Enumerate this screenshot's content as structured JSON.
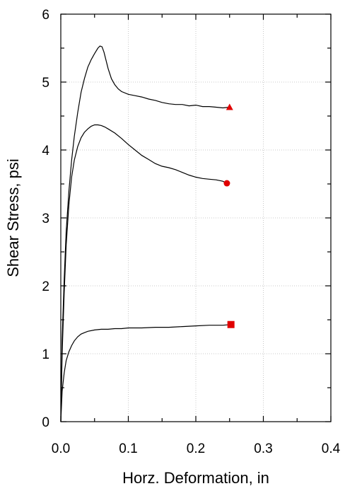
{
  "chart_data": {
    "type": "line",
    "title": "",
    "xlabel": "Horz. Deformation, in",
    "ylabel": "Shear Stress, psi",
    "xlim": [
      0,
      0.4
    ],
    "ylim": [
      0,
      6
    ],
    "xticks": [
      0,
      0.1,
      0.2,
      0.3,
      0.4
    ],
    "xtick_labels": [
      "0.0",
      "0.1",
      "0.2",
      "0.3",
      "0.4"
    ],
    "yticks": [
      0,
      1,
      2,
      3,
      4,
      5,
      6
    ],
    "ytick_labels": [
      "0",
      "1",
      "2",
      "3",
      "4",
      "5",
      "6"
    ],
    "grid": true,
    "line_color": "#000000",
    "marker_color": "#e00000",
    "series": [
      {
        "marker": "triangle",
        "x": [
          0,
          0.002,
          0.005,
          0.008,
          0.012,
          0.016,
          0.02,
          0.025,
          0.03,
          0.035,
          0.04,
          0.045,
          0.05,
          0.055,
          0.058,
          0.061,
          0.064,
          0.067,
          0.07,
          0.075,
          0.08,
          0.085,
          0.09,
          0.1,
          0.11,
          0.12,
          0.13,
          0.14,
          0.15,
          0.16,
          0.17,
          0.18,
          0.19,
          0.2,
          0.21,
          0.22,
          0.23,
          0.24,
          0.25
        ],
        "y": [
          0,
          1.2,
          2.1,
          2.8,
          3.4,
          3.85,
          4.2,
          4.55,
          4.85,
          5.05,
          5.22,
          5.33,
          5.42,
          5.5,
          5.53,
          5.52,
          5.44,
          5.32,
          5.2,
          5.05,
          4.96,
          4.9,
          4.86,
          4.82,
          4.8,
          4.78,
          4.75,
          4.73,
          4.7,
          4.68,
          4.67,
          4.67,
          4.65,
          4.66,
          4.64,
          4.64,
          4.63,
          4.62,
          4.63
        ]
      },
      {
        "marker": "circle",
        "x": [
          0,
          0.002,
          0.005,
          0.008,
          0.012,
          0.016,
          0.02,
          0.025,
          0.03,
          0.035,
          0.04,
          0.045,
          0.05,
          0.055,
          0.06,
          0.065,
          0.07,
          0.08,
          0.09,
          0.1,
          0.11,
          0.12,
          0.13,
          0.14,
          0.15,
          0.16,
          0.17,
          0.18,
          0.19,
          0.2,
          0.21,
          0.22,
          0.23,
          0.24,
          0.246
        ],
        "y": [
          0,
          1.0,
          1.9,
          2.6,
          3.2,
          3.6,
          3.85,
          4.05,
          4.18,
          4.26,
          4.31,
          4.35,
          4.37,
          4.37,
          4.36,
          4.34,
          4.31,
          4.25,
          4.17,
          4.08,
          4.0,
          3.92,
          3.86,
          3.8,
          3.76,
          3.74,
          3.71,
          3.67,
          3.63,
          3.6,
          3.58,
          3.57,
          3.56,
          3.54,
          3.51
        ]
      },
      {
        "marker": "square",
        "x": [
          0,
          0.002,
          0.005,
          0.008,
          0.012,
          0.016,
          0.02,
          0.025,
          0.03,
          0.035,
          0.04,
          0.05,
          0.06,
          0.07,
          0.08,
          0.09,
          0.1,
          0.12,
          0.14,
          0.16,
          0.18,
          0.2,
          0.22,
          0.24,
          0.252
        ],
        "y": [
          0,
          0.45,
          0.72,
          0.9,
          1.03,
          1.12,
          1.19,
          1.25,
          1.29,
          1.31,
          1.33,
          1.35,
          1.36,
          1.36,
          1.37,
          1.37,
          1.38,
          1.38,
          1.39,
          1.39,
          1.4,
          1.41,
          1.42,
          1.42,
          1.43
        ]
      }
    ]
  }
}
